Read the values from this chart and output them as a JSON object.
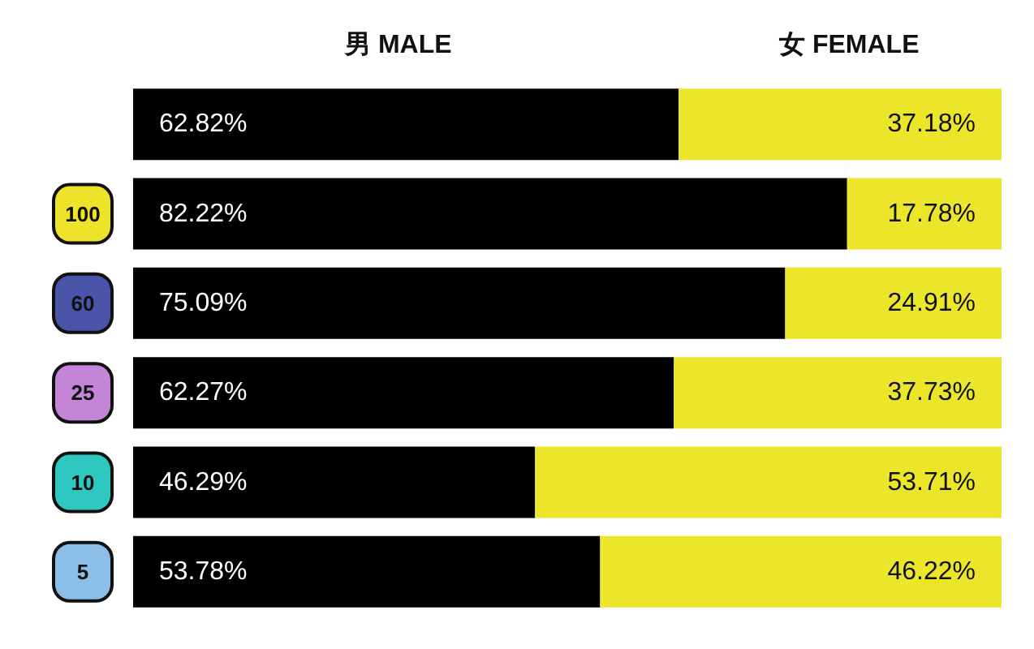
{
  "chart_data": {
    "type": "bar",
    "orientation": "horizontal",
    "stacked": true,
    "categories": [
      null,
      "100",
      "60",
      "25",
      "10",
      "5"
    ],
    "series": [
      {
        "name": "男 MALE",
        "color": "#000000",
        "values": [
          62.82,
          82.22,
          75.09,
          62.27,
          46.29,
          53.78
        ],
        "value_labels": [
          "62.82%",
          "82.22%",
          "75.09%",
          "62.27%",
          "46.29%",
          "53.78%"
        ]
      },
      {
        "name": "女 FEMALE",
        "color": "#ece62a",
        "values": [
          37.18,
          17.78,
          24.91,
          37.73,
          53.71,
          46.22
        ],
        "value_labels": [
          "37.18%",
          "17.78%",
          "24.91%",
          "37.73%",
          "53.71%",
          "46.22%"
        ]
      }
    ],
    "xlim": [
      0,
      100
    ],
    "legend": "top",
    "tick_labels": "y"
  }
}
